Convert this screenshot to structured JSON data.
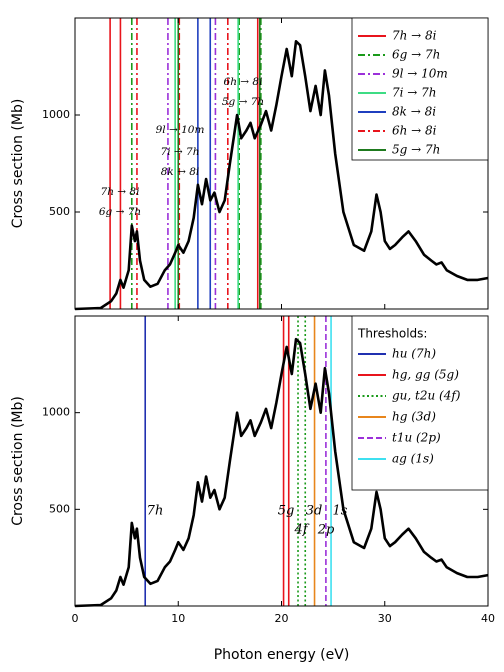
{
  "chart_data": [
    {
      "type": "line",
      "ylabel": "Cross section (Mb)",
      "xlim": [
        0,
        40
      ],
      "ylim": [
        0,
        1500
      ],
      "xticks": [
        0,
        10,
        20,
        30,
        40
      ],
      "yticks": [
        500,
        1000
      ],
      "x": [
        0,
        2.5,
        3.5,
        4.0,
        4.4,
        4.7,
        5.2,
        5.5,
        5.8,
        6.0,
        6.3,
        6.7,
        7.3,
        8,
        8.7,
        9.2,
        9.7,
        10,
        10.5,
        11,
        11.5,
        11.9,
        12.3,
        12.7,
        13.1,
        13.5,
        14,
        14.5,
        15,
        15.7,
        16.1,
        16.6,
        17,
        17.4,
        18,
        18.5,
        19,
        19.5,
        20,
        20.5,
        21,
        21.4,
        21.8,
        22.3,
        22.8,
        23.3,
        23.8,
        24.2,
        24.6,
        25.2,
        26,
        27,
        28,
        28.7,
        29.2,
        29.6,
        30,
        30.5,
        31,
        31.7,
        32.3,
        33,
        33.8,
        34.5,
        35,
        35.5,
        36,
        37,
        38,
        39,
        40
      ],
      "values": [
        0,
        5,
        40,
        80,
        150,
        110,
        200,
        430,
        350,
        400,
        250,
        150,
        115,
        130,
        200,
        230,
        290,
        330,
        290,
        350,
        470,
        640,
        540,
        670,
        560,
        600,
        500,
        560,
        750,
        1000,
        880,
        920,
        960,
        880,
        950,
        1020,
        920,
        1050,
        1200,
        1340,
        1200,
        1380,
        1360,
        1200,
        1020,
        1150,
        1000,
        1230,
        1100,
        800,
        500,
        330,
        300,
        400,
        590,
        500,
        350,
        310,
        330,
        370,
        400,
        350,
        280,
        250,
        230,
        240,
        200,
        170,
        150,
        150,
        160
      ],
      "color": "#000000",
      "lines": [
        {
          "name": "7h → 8i",
          "color": "#e8141c",
          "style": "solid",
          "values": [
            3.4,
            4.4,
            17.7
          ]
        },
        {
          "name": "6g → 7h",
          "color": "#1a9a1a",
          "style": "dashdot",
          "values": [
            5.5,
            15.9,
            18.0
          ]
        },
        {
          "name": "9l → 10m",
          "color": "#9b30d9",
          "style": "dashdot",
          "values": [
            9.0,
            13.6
          ]
        },
        {
          "name": "7i → 7h",
          "color": "#3ddc84",
          "style": "solid",
          "values": [
            9.7,
            15.8
          ]
        },
        {
          "name": "8k → 8i",
          "color": "#1f3fbf",
          "style": "solid",
          "values": [
            11.9,
            13.1
          ]
        },
        {
          "name": "6h → 8i",
          "color": "#e8141c",
          "style": "dashdot",
          "values": [
            6.0,
            10.1,
            14.8
          ]
        },
        {
          "name": "5g → 7h",
          "color": "#1e7a1e",
          "style": "solid",
          "values": [
            10.0,
            17.9
          ]
        }
      ],
      "annotations": [
        "7h → 8i",
        "6g → 7h",
        "9l → 10m",
        "7i → 7h",
        "8k → 8i",
        "6h → 8i",
        "5g → 7h"
      ]
    },
    {
      "type": "line",
      "ylabel": "Cross section (Mb)",
      "xlabel": "Photon energy (eV)",
      "xlim": [
        0,
        40
      ],
      "ylim": [
        0,
        1500
      ],
      "xticks": [
        0,
        10,
        20,
        30,
        40
      ],
      "yticks": [
        500,
        1000
      ],
      "x": [
        0,
        2.5,
        3.5,
        4.0,
        4.4,
        4.7,
        5.2,
        5.5,
        5.8,
        6.0,
        6.3,
        6.7,
        7.3,
        8,
        8.7,
        9.2,
        9.7,
        10,
        10.5,
        11,
        11.5,
        11.9,
        12.3,
        12.7,
        13.1,
        13.5,
        14,
        14.5,
        15,
        15.7,
        16.1,
        16.6,
        17,
        17.4,
        18,
        18.5,
        19,
        19.5,
        20,
        20.5,
        21,
        21.4,
        21.8,
        22.3,
        22.8,
        23.3,
        23.8,
        24.2,
        24.6,
        25.2,
        26,
        27,
        28,
        28.7,
        29.2,
        29.6,
        30,
        30.5,
        31,
        31.7,
        32.3,
        33,
        33.8,
        34.5,
        35,
        35.5,
        36,
        37,
        38,
        39,
        40
      ],
      "values": [
        0,
        5,
        40,
        80,
        150,
        110,
        200,
        430,
        350,
        400,
        250,
        150,
        115,
        130,
        200,
        230,
        290,
        330,
        290,
        350,
        470,
        640,
        540,
        670,
        560,
        600,
        500,
        560,
        750,
        1000,
        880,
        920,
        960,
        880,
        950,
        1020,
        920,
        1050,
        1200,
        1340,
        1200,
        1380,
        1360,
        1200,
        1020,
        1150,
        1000,
        1230,
        1100,
        800,
        500,
        330,
        300,
        400,
        590,
        500,
        350,
        310,
        330,
        370,
        400,
        350,
        280,
        250,
        230,
        240,
        200,
        170,
        150,
        150,
        160
      ],
      "color": "#000000",
      "legend_title": "Thresholds:",
      "lines": [
        {
          "name": "hu (7h)",
          "color": "#2030b0",
          "style": "solid",
          "values": [
            6.8
          ]
        },
        {
          "name": "hg, gg (5g)",
          "color": "#e8141c",
          "style": "solid",
          "values": [
            20.2,
            20.7
          ]
        },
        {
          "name": "gu, t2u (4f)",
          "color": "#1a9a1a",
          "style": "dotted",
          "values": [
            21.6,
            22.3
          ]
        },
        {
          "name": "hg (3d)",
          "color": "#e8861c",
          "style": "solid",
          "values": [
            23.2
          ]
        },
        {
          "name": "t1u (2p)",
          "color": "#9b30d9",
          "style": "dashed",
          "values": [
            24.3
          ]
        },
        {
          "name": "ag (1s)",
          "color": "#3ee0f0",
          "style": "solid",
          "values": [
            24.8
          ]
        }
      ],
      "annotations": [
        "7h",
        "5g",
        "3d",
        "1s",
        "4f",
        "2p"
      ]
    }
  ]
}
